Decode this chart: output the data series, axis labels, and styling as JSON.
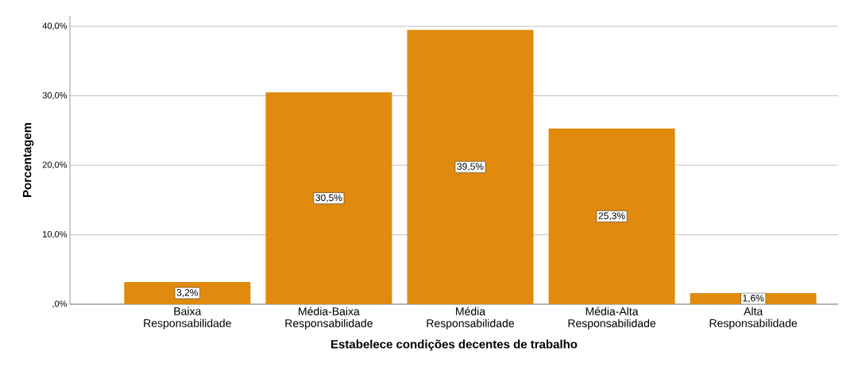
{
  "chart_data": {
    "type": "bar",
    "xlabel": "Estabelece condições decentes de trabalho",
    "ylabel": "Porcentagem",
    "categories": [
      "Baixa Responsabilidade",
      "Média-Baixa Responsabilidade",
      "Média Responsabilidade",
      "Média-Alta Responsabilidade",
      "Alta Responsabilidade"
    ],
    "values": [
      3.2,
      30.5,
      39.5,
      25.3,
      1.6
    ],
    "value_labels": [
      "3,2%",
      "30,5%",
      "39,5%",
      "25,3%",
      "1,6%"
    ],
    "color": "#e08a0e",
    "ylim": [
      0,
      41.5
    ],
    "yticks": [
      {
        "value": 0,
        "label": ",0%"
      },
      {
        "value": 10,
        "label": "10,0%"
      },
      {
        "value": 20,
        "label": "20,0%"
      },
      {
        "value": 30,
        "label": "30,0%"
      },
      {
        "value": 40,
        "label": "40,0%"
      }
    ],
    "grid": "y"
  }
}
